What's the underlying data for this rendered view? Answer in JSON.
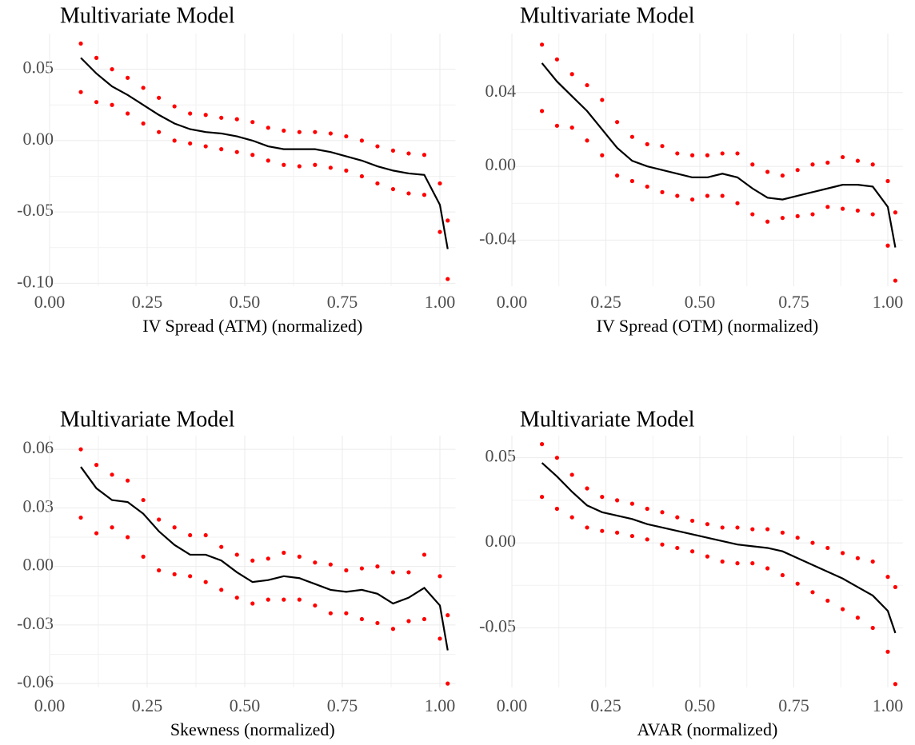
{
  "chart_data": [
    {
      "type": "line",
      "title": "Multivariate Model",
      "x_label": "IV Spread (ATM) (normalized)",
      "x": [
        0.08,
        0.12,
        0.16,
        0.2,
        0.24,
        0.28,
        0.32,
        0.36,
        0.4,
        0.44,
        0.48,
        0.52,
        0.56,
        0.6,
        0.64,
        0.68,
        0.72,
        0.76,
        0.8,
        0.84,
        0.88,
        0.92,
        0.96,
        1.0,
        1.02
      ],
      "xlim": [
        0,
        1.04
      ],
      "xticks": [
        {
          "value": 0,
          "label": "0.00"
        },
        0.25,
        {
          "value": 0.5,
          "label": "0.50"
        },
        0.75,
        {
          "value": 1,
          "label": "1.00"
        }
      ],
      "ylim": [
        -0.102,
        0.075
      ],
      "yticks": [
        {
          "value": -0.1,
          "label": "-0.10"
        },
        -0.05,
        {
          "value": 0,
          "label": "0.00"
        },
        0.05
      ],
      "grid": true,
      "series": [
        {
          "color": "#000000",
          "style": "line",
          "values": [
            0.058,
            0.047,
            0.038,
            0.032,
            0.025,
            0.018,
            0.012,
            0.008,
            0.006,
            0.005,
            0.003,
            0.0,
            -0.004,
            -0.006,
            -0.006,
            -0.006,
            -0.008,
            -0.011,
            -0.014,
            -0.018,
            -0.021,
            -0.023,
            -0.024,
            -0.045,
            -0.076
          ]
        },
        {
          "color": "#ff0000",
          "style": "points",
          "values": [
            0.068,
            0.058,
            0.05,
            0.044,
            0.037,
            0.03,
            0.024,
            0.019,
            0.018,
            0.016,
            0.015,
            0.013,
            0.009,
            0.007,
            0.006,
            0.006,
            0.005,
            0.003,
            0.0,
            -0.004,
            -0.007,
            -0.009,
            -0.01,
            -0.03,
            -0.056
          ]
        },
        {
          "color": "#ff0000",
          "style": "points",
          "values": [
            0.034,
            0.027,
            0.025,
            0.019,
            0.012,
            0.006,
            0.0,
            -0.002,
            -0.004,
            -0.006,
            -0.008,
            -0.01,
            -0.014,
            -0.017,
            -0.018,
            -0.017,
            -0.019,
            -0.021,
            -0.025,
            -0.03,
            -0.034,
            -0.037,
            -0.038,
            -0.064,
            -0.097
          ]
        }
      ]
    },
    {
      "type": "line",
      "title": "Multivariate Model",
      "x_label": "IV Spread (OTM) (normalized)",
      "x": [
        0.08,
        0.12,
        0.16,
        0.2,
        0.24,
        0.28,
        0.32,
        0.36,
        0.4,
        0.44,
        0.48,
        0.52,
        0.56,
        0.6,
        0.64,
        0.68,
        0.72,
        0.76,
        0.8,
        0.84,
        0.88,
        0.92,
        0.96,
        1.0,
        1.02
      ],
      "xlim": [
        0,
        1.04
      ],
      "xticks": [
        {
          "value": 0,
          "label": "0.00"
        },
        0.25,
        {
          "value": 0.5,
          "label": "0.50"
        },
        0.75,
        {
          "value": 1,
          "label": "1.00"
        }
      ],
      "ylim": [
        -0.065,
        0.072
      ],
      "yticks": [
        -0.04,
        {
          "value": 0,
          "label": "0.00"
        },
        0.04
      ],
      "grid": true,
      "series": [
        {
          "color": "#000000",
          "style": "line",
          "values": [
            0.056,
            0.046,
            0.038,
            0.03,
            0.02,
            0.01,
            0.003,
            0.0,
            -0.002,
            -0.004,
            -0.006,
            -0.006,
            -0.004,
            -0.006,
            -0.012,
            -0.017,
            -0.018,
            -0.016,
            -0.014,
            -0.012,
            -0.01,
            -0.01,
            -0.011,
            -0.022,
            -0.044
          ]
        },
        {
          "color": "#ff0000",
          "style": "points",
          "values": [
            0.066,
            0.058,
            0.05,
            0.044,
            0.036,
            0.024,
            0.016,
            0.012,
            0.011,
            0.007,
            0.006,
            0.006,
            0.007,
            0.007,
            0.001,
            -0.003,
            -0.005,
            -0.002,
            0.001,
            0.002,
            0.005,
            0.003,
            0.001,
            -0.008,
            -0.025
          ]
        },
        {
          "color": "#ff0000",
          "style": "points",
          "values": [
            0.03,
            0.022,
            0.021,
            0.014,
            0.006,
            -0.005,
            -0.008,
            -0.011,
            -0.014,
            -0.016,
            -0.018,
            -0.016,
            -0.016,
            -0.02,
            -0.026,
            -0.03,
            -0.028,
            -0.027,
            -0.026,
            -0.022,
            -0.023,
            -0.024,
            -0.026,
            -0.043,
            -0.062
          ]
        }
      ]
    },
    {
      "type": "line",
      "title": "Multivariate Model",
      "x_label": "Skewness (normalized)",
      "x": [
        0.08,
        0.12,
        0.16,
        0.2,
        0.24,
        0.28,
        0.32,
        0.36,
        0.4,
        0.44,
        0.48,
        0.52,
        0.56,
        0.6,
        0.64,
        0.68,
        0.72,
        0.76,
        0.8,
        0.84,
        0.88,
        0.92,
        0.96,
        1.0,
        1.02
      ],
      "xlim": [
        0,
        1.04
      ],
      "xticks": [
        {
          "value": 0,
          "label": "0.00"
        },
        0.25,
        {
          "value": 0.5,
          "label": "0.50"
        },
        0.75,
        {
          "value": 1,
          "label": "1.00"
        }
      ],
      "ylim": [
        -0.062,
        0.067
      ],
      "yticks": [
        -0.06,
        -0.03,
        {
          "value": 0,
          "label": "0.00"
        },
        0.03,
        0.06
      ],
      "grid": true,
      "series": [
        {
          "color": "#000000",
          "style": "line",
          "values": [
            0.051,
            0.04,
            0.034,
            0.033,
            0.027,
            0.018,
            0.011,
            0.006,
            0.006,
            0.003,
            -0.003,
            -0.008,
            -0.007,
            -0.005,
            -0.006,
            -0.009,
            -0.012,
            -0.013,
            -0.012,
            -0.014,
            -0.019,
            -0.016,
            -0.011,
            -0.02,
            -0.043
          ]
        },
        {
          "color": "#ff0000",
          "style": "points",
          "values": [
            0.06,
            0.052,
            0.047,
            0.044,
            0.034,
            0.024,
            0.02,
            0.016,
            0.016,
            0.01,
            0.006,
            0.003,
            0.004,
            0.007,
            0.005,
            0.002,
            0.001,
            -0.002,
            -0.001,
            0.0,
            -0.003,
            -0.003,
            0.006,
            -0.005,
            -0.025
          ]
        },
        {
          "color": "#ff0000",
          "style": "points",
          "values": [
            0.025,
            0.017,
            0.02,
            0.015,
            0.005,
            -0.002,
            -0.004,
            -0.005,
            -0.008,
            -0.012,
            -0.016,
            -0.019,
            -0.017,
            -0.017,
            -0.017,
            -0.02,
            -0.024,
            -0.024,
            -0.027,
            -0.029,
            -0.032,
            -0.028,
            -0.027,
            -0.037,
            -0.06
          ]
        }
      ]
    },
    {
      "type": "line",
      "title": "Multivariate Model",
      "x_label": "AVAR (normalized)",
      "x": [
        0.08,
        0.12,
        0.16,
        0.2,
        0.24,
        0.28,
        0.32,
        0.36,
        0.4,
        0.44,
        0.48,
        0.52,
        0.56,
        0.6,
        0.64,
        0.68,
        0.72,
        0.76,
        0.8,
        0.84,
        0.88,
        0.92,
        0.96,
        1.0,
        1.02
      ],
      "xlim": [
        0,
        1.04
      ],
      "xticks": [
        {
          "value": 0,
          "label": "0.00"
        },
        0.25,
        {
          "value": 0.5,
          "label": "0.50"
        },
        0.75,
        {
          "value": 1,
          "label": "1.00"
        }
      ],
      "ylim": [
        -0.085,
        0.063
      ],
      "yticks": [
        -0.05,
        {
          "value": 0,
          "label": "0.00"
        },
        0.05
      ],
      "grid": true,
      "series": [
        {
          "color": "#000000",
          "style": "line",
          "values": [
            0.047,
            0.039,
            0.03,
            0.022,
            0.018,
            0.016,
            0.014,
            0.011,
            0.009,
            0.007,
            0.005,
            0.003,
            0.001,
            -0.001,
            -0.002,
            -0.003,
            -0.005,
            -0.009,
            -0.013,
            -0.017,
            -0.021,
            -0.026,
            -0.031,
            -0.04,
            -0.053
          ]
        },
        {
          "color": "#ff0000",
          "style": "points",
          "values": [
            0.058,
            0.05,
            0.04,
            0.032,
            0.027,
            0.025,
            0.023,
            0.02,
            0.018,
            0.015,
            0.013,
            0.011,
            0.009,
            0.009,
            0.008,
            0.008,
            0.006,
            0.003,
            0.0,
            -0.003,
            -0.006,
            -0.009,
            -0.011,
            -0.02,
            -0.026
          ]
        },
        {
          "color": "#ff0000",
          "style": "points",
          "values": [
            0.027,
            0.02,
            0.015,
            0.009,
            0.007,
            0.006,
            0.004,
            0.002,
            -0.001,
            -0.003,
            -0.005,
            -0.008,
            -0.011,
            -0.012,
            -0.012,
            -0.015,
            -0.019,
            -0.024,
            -0.029,
            -0.034,
            -0.039,
            -0.044,
            -0.05,
            -0.064,
            -0.083
          ]
        }
      ]
    }
  ]
}
